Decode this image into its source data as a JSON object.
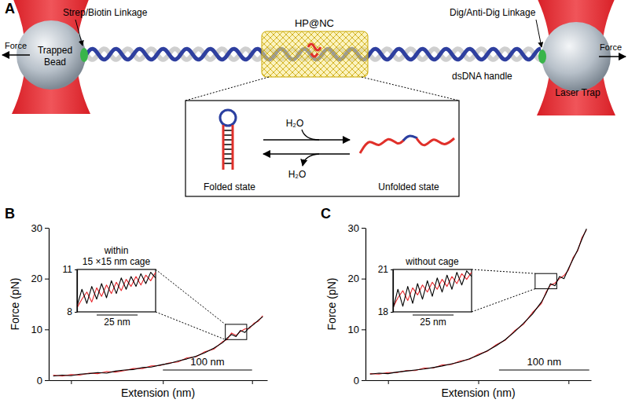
{
  "diagram": {
    "panel_labels": [
      "A",
      "B",
      "C"
    ],
    "force_left": "Force",
    "force_right": "Force",
    "bead": [
      "Trapped",
      "Bead"
    ],
    "strep_linkage": "Strep/Biotin Linkage",
    "cage": "HP@NC",
    "dig_linkage": "Dig/Anti-Dig Linkage",
    "handle": "dsDNA handle",
    "laser_trap": "Laser Trap",
    "water_in": "H₂O",
    "water_out": "H₂O",
    "folded": "Folded state",
    "unfolded": "Unfolded state"
  },
  "chart_data": [
    {
      "type": "line",
      "x_label": "Extension (nm)",
      "y_label": "Force (pN)",
      "xlim": [
        0,
        245
      ],
      "xticks": [
        25,
        128,
        228
      ],
      "ylim": [
        0,
        30
      ],
      "yticks": [
        0,
        10,
        20,
        30
      ],
      "tick_labels": "y",
      "scale_bar": {
        "x": 128,
        "length": 100,
        "label": "100 nm"
      },
      "x": [
        5,
        15,
        25,
        35,
        45,
        55,
        65,
        75,
        85,
        95,
        105,
        115,
        125,
        135,
        145,
        155,
        165,
        175,
        185,
        195,
        200,
        205,
        210,
        215,
        220,
        225,
        230,
        235,
        240
      ],
      "series": [
        {
          "color": "#e8262b",
          "values": [
            1.0,
            0.8,
            1.1,
            1.0,
            1.4,
            1.3,
            1.7,
            1.6,
            1.9,
            2.3,
            2.3,
            2.8,
            2.9,
            3.4,
            3.6,
            4.4,
            4.6,
            5.6,
            6.1,
            7.6,
            8.0,
            9.3,
            8.8,
            9.6,
            10.1,
            10.2,
            11.2,
            11.6,
            12.7
          ]
        },
        {
          "color": "#000000",
          "values": [
            0.8,
            1.0,
            0.9,
            1.2,
            1.3,
            1.5,
            1.4,
            1.8,
            2.0,
            2.1,
            2.5,
            2.6,
            3.0,
            3.3,
            3.8,
            4.2,
            4.7,
            5.4,
            6.3,
            7.4,
            8.3,
            9.0,
            8.6,
            9.8,
            9.4,
            10.4,
            11.0,
            11.8,
            12.5
          ]
        }
      ],
      "zoom_box": {
        "xlim": [
          198,
          222
        ],
        "ylim": [
          8,
          11
        ]
      },
      "inset": {
        "type": "line",
        "title": [
          "within",
          "15 ×15 nm cage"
        ],
        "xlim": [
          0,
          48
        ],
        "ylim": [
          8,
          11
        ],
        "yticks": [
          8,
          11
        ],
        "tick_labels": "y",
        "scale_bar": {
          "x": 12,
          "length": 25,
          "label": "25 nm"
        },
        "x": [
          0,
          3,
          6,
          9,
          12,
          15,
          18,
          21,
          24,
          27,
          30,
          33,
          36,
          39,
          42,
          45,
          48
        ],
        "series": [
          {
            "color": "#e8262b",
            "values": [
              8.3,
              8.9,
              9.4,
              8.7,
              9.7,
              9.1,
              9.9,
              9.3,
              10.1,
              9.5,
              10.3,
              9.8,
              10.5,
              9.9,
              10.6,
              10.2,
              10.8
            ]
          },
          {
            "color": "#000000",
            "values": [
              8.4,
              9.6,
              8.6,
              9.8,
              8.9,
              10.0,
              9.0,
              10.2,
              9.3,
              10.4,
              9.6,
              10.5,
              9.8,
              10.7,
              10.0,
              10.8,
              10.4
            ]
          }
        ]
      }
    },
    {
      "type": "line",
      "x_label": "Extension (nm)",
      "y_label": "Force (pN)",
      "xlim": [
        0,
        250
      ],
      "xticks": [
        25,
        125,
        225
      ],
      "ylim": [
        0,
        30
      ],
      "yticks": [
        0,
        10,
        20,
        30
      ],
      "tick_labels": "y",
      "scale_bar": {
        "x": 148,
        "length": 100,
        "label": "100 nm"
      },
      "x": [
        5,
        15,
        25,
        35,
        45,
        55,
        65,
        75,
        85,
        95,
        105,
        115,
        125,
        135,
        145,
        155,
        165,
        175,
        185,
        195,
        200,
        205,
        210,
        215,
        220,
        225,
        230,
        235,
        240,
        245
      ],
      "series": [
        {
          "color": "#e8262b",
          "values": [
            1.3,
            1.2,
            1.5,
            1.5,
            1.9,
            1.9,
            2.4,
            2.4,
            3.0,
            3.1,
            3.8,
            4.1,
            5.1,
            5.7,
            7.0,
            7.9,
            9.7,
            11.0,
            13.3,
            15.1,
            17.3,
            18.7,
            19.1,
            20.0,
            20.6,
            21.7,
            24.1,
            25.4,
            28.1,
            29.6
          ]
        },
        {
          "color": "#000000",
          "values": [
            1.2,
            1.4,
            1.3,
            1.6,
            1.8,
            2.0,
            2.2,
            2.5,
            2.8,
            3.2,
            3.6,
            4.2,
            4.9,
            5.8,
            6.8,
            8.0,
            9.5,
            11.2,
            13.0,
            15.4,
            17.0,
            19.0,
            18.6,
            20.4,
            20.0,
            22.0,
            23.8,
            25.6,
            27.8,
            29.8
          ]
        }
      ],
      "zoom_box": {
        "xlim": [
          188,
          212
        ],
        "ylim": [
          18,
          21
        ]
      },
      "inset": {
        "type": "line",
        "title": [
          "without cage"
        ],
        "xlim": [
          0,
          48
        ],
        "ylim": [
          18,
          21
        ],
        "yticks": [
          18,
          21
        ],
        "tick_labels": "y",
        "scale_bar": {
          "x": 12,
          "length": 25,
          "label": "25 nm"
        },
        "x": [
          0,
          3,
          6,
          9,
          12,
          15,
          18,
          21,
          24,
          27,
          30,
          33,
          36,
          39,
          42,
          45,
          48
        ],
        "series": [
          {
            "color": "#e8262b",
            "values": [
              18.3,
              19.0,
              19.5,
              18.8,
              19.7,
              19.2,
              19.9,
              19.4,
              20.1,
              19.6,
              20.3,
              19.8,
              20.5,
              20.0,
              20.7,
              20.3,
              20.8
            ]
          },
          {
            "color": "#000000",
            "values": [
              18.2,
              19.6,
              18.4,
              19.8,
              18.6,
              20.0,
              18.9,
              20.2,
              19.1,
              20.4,
              19.4,
              20.6,
              19.6,
              20.8,
              19.9,
              20.9,
              20.5
            ]
          }
        ]
      }
    }
  ]
}
